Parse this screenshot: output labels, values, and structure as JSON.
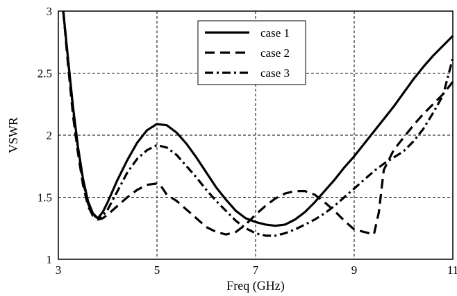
{
  "chart_data": {
    "type": "line",
    "title": "",
    "xlabel": "Freq (GHz)",
    "ylabel": "VSWR",
    "xlim": [
      3,
      11
    ],
    "ylim": [
      1,
      3
    ],
    "xticks": [
      3,
      5,
      7,
      9,
      11
    ],
    "yticks": [
      1,
      1.5,
      2,
      2.5,
      3
    ],
    "xtick_labels": [
      "3",
      "5",
      "7",
      "9",
      "11"
    ],
    "ytick_labels": [
      "1",
      "1.5",
      "2",
      "2.5",
      "3"
    ],
    "grid": true,
    "legend_position": "top-center",
    "series": [
      {
        "name": "case 1",
        "style": "solid",
        "x": [
          3.1,
          3.2,
          3.3,
          3.4,
          3.5,
          3.6,
          3.7,
          3.8,
          3.9,
          4.0,
          4.2,
          4.4,
          4.6,
          4.8,
          5.0,
          5.2,
          5.4,
          5.6,
          5.8,
          6.0,
          6.2,
          6.4,
          6.6,
          6.8,
          7.0,
          7.2,
          7.4,
          7.6,
          7.8,
          8.0,
          8.2,
          8.4,
          8.6,
          8.8,
          9.0,
          9.2,
          9.4,
          9.6,
          9.8,
          10.0,
          10.2,
          10.4,
          10.6,
          10.8,
          11.0
        ],
        "y": [
          3.0,
          2.6,
          2.22,
          1.9,
          1.65,
          1.47,
          1.37,
          1.33,
          1.38,
          1.46,
          1.64,
          1.8,
          1.94,
          2.04,
          2.09,
          2.08,
          2.02,
          1.93,
          1.82,
          1.7,
          1.58,
          1.48,
          1.39,
          1.33,
          1.3,
          1.28,
          1.27,
          1.28,
          1.32,
          1.38,
          1.46,
          1.55,
          1.64,
          1.74,
          1.83,
          1.93,
          2.03,
          2.13,
          2.23,
          2.34,
          2.45,
          2.55,
          2.64,
          2.72,
          2.8
        ]
      },
      {
        "name": "case 2",
        "style": "dashed",
        "x": [
          3.1,
          3.2,
          3.3,
          3.4,
          3.5,
          3.6,
          3.7,
          3.8,
          3.9,
          4.0,
          4.2,
          4.4,
          4.6,
          4.8,
          5.0,
          5.1,
          5.2,
          5.4,
          5.6,
          5.8,
          6.0,
          6.2,
          6.4,
          6.6,
          6.8,
          7.0,
          7.2,
          7.4,
          7.6,
          7.8,
          8.0,
          8.2,
          8.4,
          8.6,
          8.8,
          9.0,
          9.2,
          9.4,
          9.5,
          9.6,
          9.8,
          10.0,
          10.2,
          10.4,
          10.6,
          10.8,
          11.0
        ],
        "y": [
          3.0,
          2.55,
          2.15,
          1.85,
          1.6,
          1.43,
          1.35,
          1.32,
          1.33,
          1.36,
          1.43,
          1.5,
          1.56,
          1.6,
          1.61,
          1.58,
          1.52,
          1.47,
          1.4,
          1.33,
          1.26,
          1.22,
          1.2,
          1.22,
          1.28,
          1.36,
          1.43,
          1.49,
          1.53,
          1.55,
          1.55,
          1.52,
          1.46,
          1.39,
          1.31,
          1.24,
          1.22,
          1.2,
          1.38,
          1.72,
          1.88,
          1.98,
          2.08,
          2.17,
          2.25,
          2.33,
          2.43
        ]
      },
      {
        "name": "case 3",
        "style": "dashdot",
        "x": [
          3.1,
          3.2,
          3.3,
          3.4,
          3.5,
          3.6,
          3.7,
          3.8,
          3.9,
          4.0,
          4.2,
          4.4,
          4.6,
          4.8,
          5.0,
          5.2,
          5.4,
          5.6,
          5.8,
          6.0,
          6.2,
          6.4,
          6.6,
          6.8,
          7.0,
          7.2,
          7.4,
          7.6,
          7.8,
          8.0,
          8.2,
          8.4,
          8.6,
          8.8,
          9.0,
          9.2,
          9.4,
          9.6,
          9.8,
          10.0,
          10.2,
          10.4,
          10.6,
          10.8,
          11.0
        ],
        "y": [
          3.0,
          2.6,
          2.2,
          1.88,
          1.63,
          1.45,
          1.36,
          1.33,
          1.35,
          1.4,
          1.55,
          1.7,
          1.81,
          1.88,
          1.92,
          1.9,
          1.84,
          1.75,
          1.66,
          1.56,
          1.47,
          1.39,
          1.31,
          1.25,
          1.21,
          1.19,
          1.19,
          1.21,
          1.24,
          1.28,
          1.32,
          1.37,
          1.43,
          1.5,
          1.57,
          1.64,
          1.71,
          1.77,
          1.82,
          1.87,
          1.95,
          2.05,
          2.18,
          2.32,
          2.62
        ]
      }
    ]
  }
}
